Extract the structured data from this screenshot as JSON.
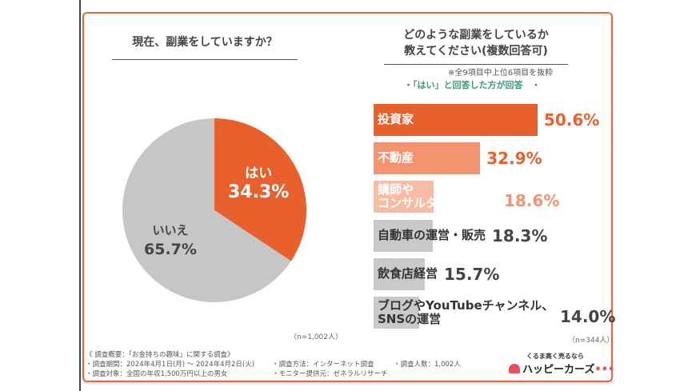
{
  "left": {
    "title": "現在、副業をしていますか？",
    "n": "（n=1,002人）"
  },
  "right": {
    "title_line1": "どのような副業をしているか",
    "title_line2": "教えてください(複数回答可)",
    "note": "※全9項目中上位6項目を抜粋",
    "subnote": "・「はい」と回答した方が回答　・",
    "n": "（n=344人）"
  },
  "chart_data": [
    {
      "type": "pie",
      "title": "現在、副業をしていますか？",
      "slices": [
        {
          "label": "はい",
          "value": 34.3,
          "value_label": "34.3%",
          "color": "#e8602c"
        },
        {
          "label": "いいえ",
          "value": 65.7,
          "value_label": "65.7%",
          "color": "#c6c6c6"
        }
      ]
    },
    {
      "type": "bar",
      "orientation": "horizontal",
      "title": "どのような副業をしているか教えてください(複数回答可)",
      "categories": [
        "投資家",
        "不動産",
        "講師やコンサルタントの活動",
        "自動車の運営・販売",
        "飲食店経営",
        "ブログやYouTubeチャンネル、SNSの運営"
      ],
      "label_lines": [
        [
          "投資家"
        ],
        [
          "不動産"
        ],
        [
          "講師や",
          "コンサルタントの活動"
        ],
        [
          "自動車の運営・販売"
        ],
        [
          "飲食店経営"
        ],
        [
          "ブログやYouTubeチャンネル、",
          "SNSの運営"
        ]
      ],
      "values": [
        50.6,
        32.9,
        18.6,
        18.3,
        15.7,
        14.0
      ],
      "value_labels": [
        "50.6%",
        "32.9%",
        "18.6%",
        "18.3%",
        "15.7%",
        "14.0%"
      ],
      "colors": [
        "#e8602c",
        "#f39370",
        "#f8bca4",
        "#c9c9c9",
        "#c9c9c9",
        "#c9c9c9"
      ],
      "label_colors": [
        "#ffffff",
        "#ffffff",
        "#ffffff",
        "#333333",
        "#333333",
        "#333333"
      ],
      "value_colors": [
        "#e8602c",
        "#e8602c",
        "#f39370",
        "#444444",
        "#444444",
        "#444444"
      ]
    }
  ],
  "footer": {
    "heading": "《 調査概要：「お金持ちの趣味」に関する調査》",
    "period": "・調査期間：2024年4月1日(月) ～ 2024年4月2日(火)",
    "target": "・調査対象：全国の年収1,500万円以上の男女",
    "method": "・調査方法：インターネット調査",
    "provider": "・モニター提供元：ゼネラルリサーチ",
    "count": "・調査人数：1,002人"
  },
  "logo": {
    "tagline": "くるま高く売るなら",
    "name": "ハッピーカーズ",
    "dots": "•••"
  }
}
